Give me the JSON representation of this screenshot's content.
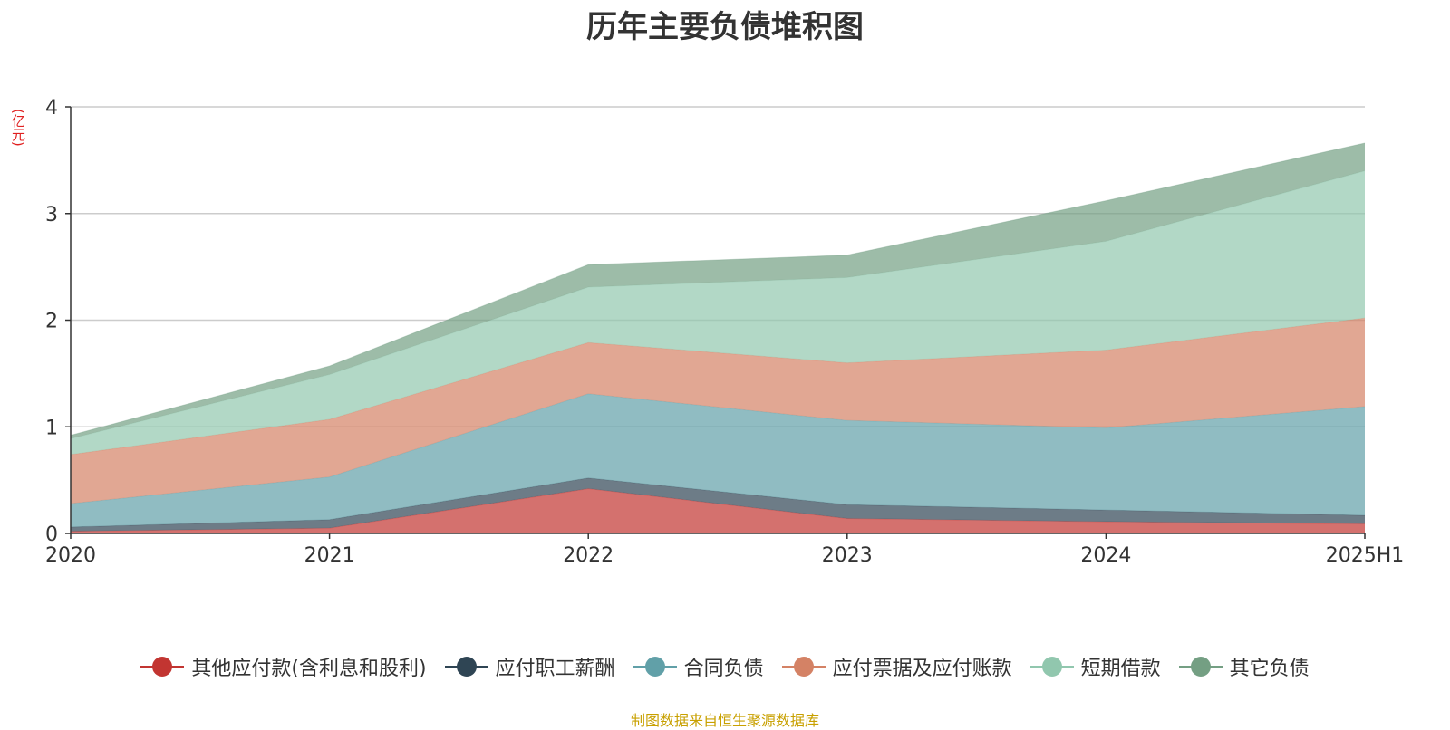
{
  "title": "历年主要负债堆积图",
  "unit": "(亿元)",
  "source": "制图数据来自恒生聚源数据库",
  "chart_data": {
    "type": "area",
    "stacked": true,
    "title": "历年主要负债堆积图",
    "ylabel": "(亿元)",
    "categories": [
      "2020",
      "2021",
      "2022",
      "2023",
      "2024",
      "2025H1"
    ],
    "ylim": [
      0,
      4
    ],
    "yticks": [
      "0",
      "1",
      "2",
      "3",
      "4"
    ],
    "grid": true,
    "legend_position": "bottom",
    "series": [
      {
        "name": "其他应付款(含利息和股利)",
        "color": "#c23531",
        "values": [
          0.02,
          0.05,
          0.42,
          0.14,
          0.11,
          0.09
        ]
      },
      {
        "name": "应付职工薪酬",
        "color": "#2f4554",
        "values": [
          0.04,
          0.08,
          0.1,
          0.13,
          0.11,
          0.08
        ]
      },
      {
        "name": "合同负债",
        "color": "#61a0a8",
        "values": [
          0.22,
          0.4,
          0.79,
          0.79,
          0.77,
          1.02
        ]
      },
      {
        "name": "应付票据及应付账款",
        "color": "#d48265",
        "values": [
          0.46,
          0.54,
          0.48,
          0.54,
          0.73,
          0.83
        ]
      },
      {
        "name": "短期借款",
        "color": "#91c7ae",
        "values": [
          0.15,
          0.42,
          0.52,
          0.8,
          1.02,
          1.38
        ]
      },
      {
        "name": "其它负债",
        "color": "#749f83",
        "values": [
          0.03,
          0.08,
          0.21,
          0.21,
          0.38,
          0.26
        ]
      }
    ]
  }
}
